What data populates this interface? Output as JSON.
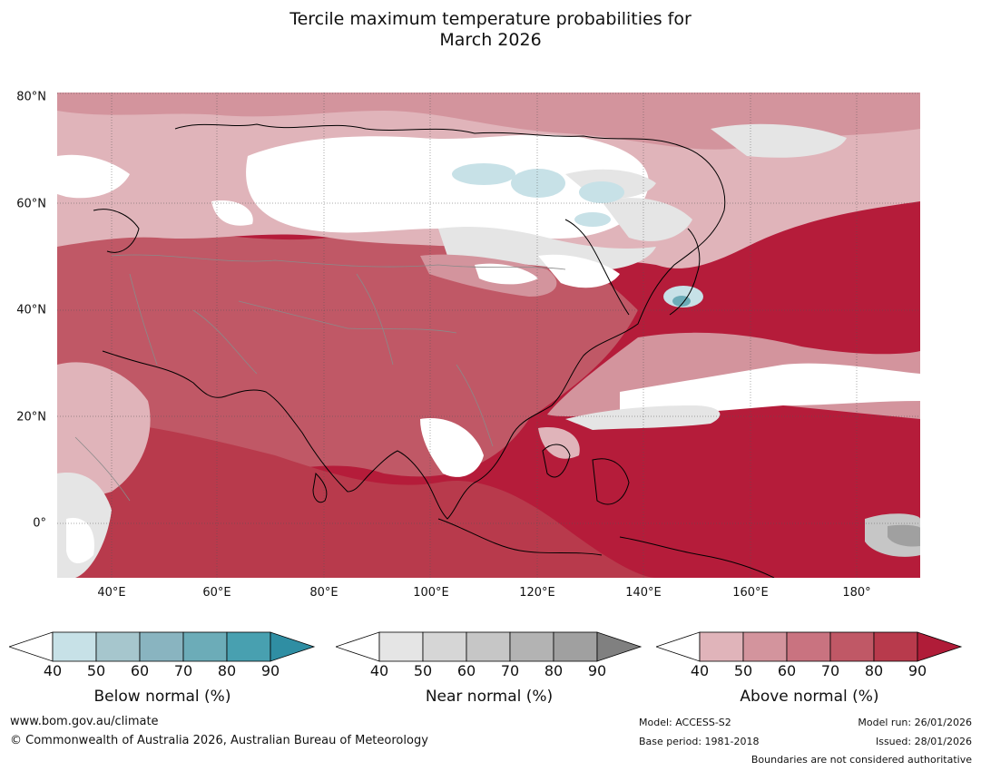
{
  "title_line1": "Tercile maximum temperature probabilities for",
  "title_line2": "March 2026",
  "map": {
    "lat_labels": [
      "80°N",
      "60°N",
      "40°N",
      "20°N",
      "0°"
    ],
    "lon_labels": [
      "40°E",
      "60°E",
      "80°E",
      "100°E",
      "120°E",
      "140°E",
      "160°E",
      "180°"
    ]
  },
  "colorbars": [
    {
      "title": "Below normal (%)",
      "ticks": [
        "40",
        "50",
        "60",
        "70",
        "80",
        "90"
      ],
      "colors": [
        "#c7e1e7",
        "#a6c6cd",
        "#89b4c0",
        "#6cacb8",
        "#48a0b0",
        "#2f8ea3"
      ]
    },
    {
      "title": "Near normal (%)",
      "ticks": [
        "40",
        "50",
        "60",
        "70",
        "80",
        "90"
      ],
      "colors": [
        "#e5e5e5",
        "#d6d6d6",
        "#c6c6c6",
        "#b3b3b3",
        "#a0a0a0",
        "#808080"
      ]
    },
    {
      "title": "Above normal (%)",
      "ticks": [
        "40",
        "50",
        "60",
        "70",
        "80",
        "90"
      ],
      "colors": [
        "#e0b4ba",
        "#d3949d",
        "#c97380",
        "#c05866",
        "#b83a4c",
        "#b01c38"
      ]
    }
  ],
  "footer": {
    "website": "www.bom.gov.au/climate",
    "copyright": "© Commonwealth of Australia 2026, Australian Bureau of Meteorology",
    "model": "Model: ACCESS-S2",
    "base_period": "Base period: 1981-2018",
    "model_run": "Model run: 26/01/2026",
    "issued": "Issued: 28/01/2026",
    "disclaimer": "Boundaries are not considered authoritative"
  }
}
